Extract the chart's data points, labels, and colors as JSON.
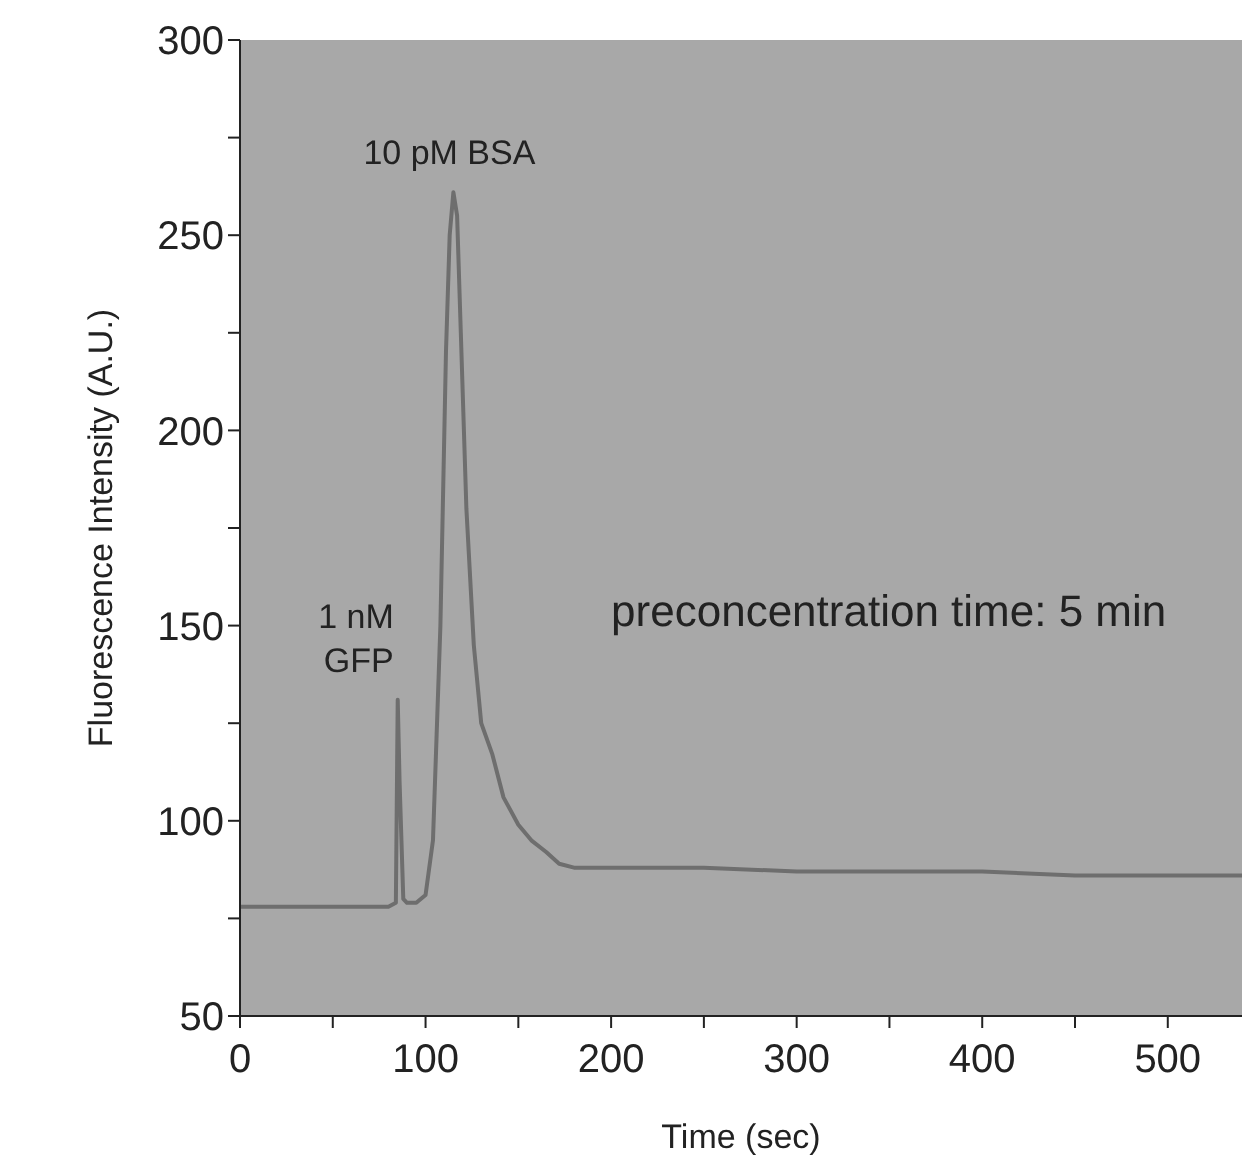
{
  "chart_data": {
    "type": "line",
    "xlabel": "Time (sec)",
    "ylabel": "Fluorescence Intensity (A.U.)",
    "xlim": [
      0,
      540
    ],
    "ylim": [
      50,
      300
    ],
    "xticks": [
      0,
      {
        "value": 50,
        "label": null
      },
      100,
      {
        "value": 150,
        "label": null
      },
      200,
      {
        "value": 250,
        "label": null
      },
      300,
      {
        "value": 350,
        "label": null
      },
      400,
      {
        "value": 450,
        "label": null
      },
      500
    ],
    "yticks": [
      50,
      {
        "value": 75,
        "label": null
      },
      100,
      {
        "value": 125,
        "label": null
      },
      150,
      {
        "value": 175,
        "label": null
      },
      200,
      {
        "value": 225,
        "label": null
      },
      250,
      {
        "value": 275,
        "label": null
      },
      300
    ],
    "annotations": [
      {
        "text": "10 pM BSA",
        "x": 115,
        "y": 261
      },
      {
        "text": "1 nM GFP",
        "x": 85,
        "y": 131
      },
      "preconcentration time: 5 min"
    ],
    "series": [
      {
        "color": "#6e6e6e",
        "x": [
          0,
          20,
          40,
          60,
          80,
          84,
          85,
          86,
          88,
          90,
          95,
          100,
          104,
          108,
          111,
          113,
          115,
          117,
          119,
          122,
          126,
          130,
          136,
          142,
          150,
          157,
          165,
          172,
          180,
          200,
          250,
          300,
          350,
          400,
          450,
          500,
          540
        ],
        "values": [
          78,
          78,
          78,
          78,
          78,
          79,
          131,
          110,
          80,
          79,
          79,
          81,
          95,
          150,
          220,
          250,
          261,
          255,
          225,
          180,
          145,
          125,
          117,
          106,
          99,
          95,
          92,
          89,
          88,
          88,
          88,
          87,
          87,
          87,
          86,
          86,
          86
        ]
      }
    ],
    "grid": false,
    "marker": "none",
    "line_style": "solid"
  }
}
